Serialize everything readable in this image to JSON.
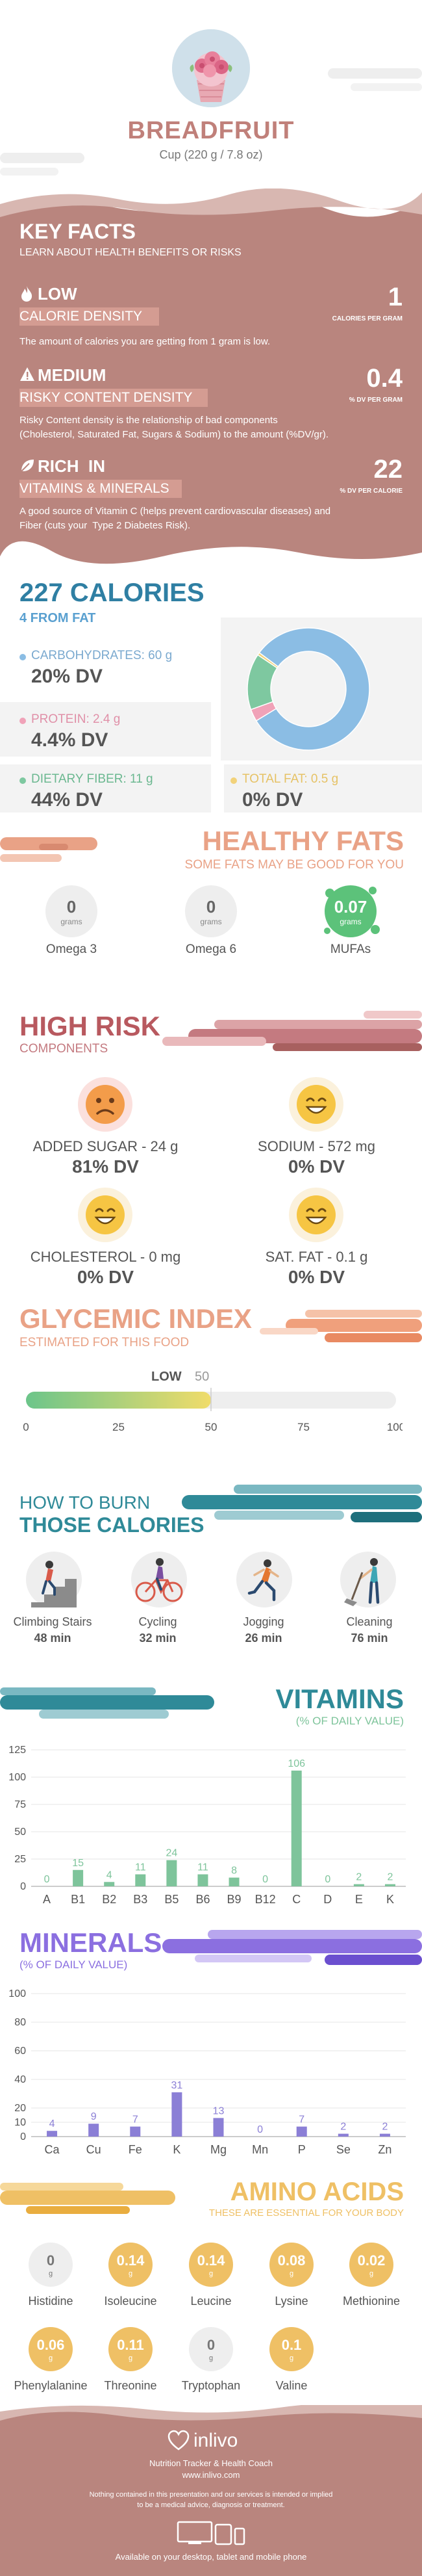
{
  "header": {
    "title": "BREADFRUIT",
    "serving": "Cup (220 g / 7.8 oz)"
  },
  "key_facts": {
    "title": "KEY FACTS",
    "subtitle": "LEARN ABOUT HEALTH BENEFITS OR RISKS",
    "items": [
      {
        "level": "LOW",
        "name": "CALORIE DENSITY",
        "value": "1",
        "unit": "CALORIES PER GRAM",
        "desc": "The amount of calories you are getting from 1 gram is low.",
        "icon": "flame-icon"
      },
      {
        "level": "MEDIUM",
        "name": "RISKY CONTENT DENSITY",
        "value": "0.4",
        "unit": "% DV PER GRAM",
        "desc1": "Risky Content density is the relationship of bad components",
        "desc2": "(Cholesterol, Saturated Fat, Sugars & Sodium) to the amount (%DV/gr).",
        "icon": "warning-icon"
      },
      {
        "level": "RICH  IN",
        "name": "VITAMINS & MINERALS",
        "value": "22",
        "unit": "% DV PER CALORIE",
        "desc1": "A good source of Vitamin C (helps prevent cardiovascular diseases) and",
        "desc2": "Fiber (cuts your  Type 2 Diabetes Risk).",
        "icon": "leaf-icon"
      }
    ]
  },
  "calories": {
    "title": "227 CALORIES",
    "from_fat": "4 FROM FAT",
    "carbs": {
      "label": "CARBOHYDRATES: 60 g",
      "dv": "20% DV",
      "color": "#8bbde4"
    },
    "protein": {
      "label": "PROTEIN: 2.4 g",
      "dv": "4.4% DV",
      "color": "#f0a2b8"
    },
    "fiber": {
      "label": "DIETARY FIBER: 11 g",
      "dv": "44% DV",
      "color": "#7ec8a0"
    },
    "fat": {
      "label": "TOTAL FAT: 0.5 g",
      "dv": "0% DV",
      "color": "#f2d27a"
    }
  },
  "chart_data": [
    {
      "type": "pie",
      "categories": [
        "Carbohydrates",
        "Protein",
        "Dietary Fiber",
        "Total Fat"
      ],
      "values": [
        60,
        2.4,
        11,
        0.5
      ]
    },
    {
      "type": "bar",
      "title": "VITAMINS",
      "subtitle": "(% OF DAILY VALUE)",
      "categories": [
        "A",
        "B1",
        "B2",
        "B3",
        "B5",
        "B6",
        "B9",
        "B12",
        "C",
        "D",
        "E",
        "K"
      ],
      "values": [
        0,
        15,
        4,
        11,
        24,
        11,
        8,
        0,
        106,
        0,
        2,
        2
      ],
      "ylim": [
        0,
        125
      ],
      "yticks": [
        0,
        25,
        50,
        75,
        100,
        125
      ]
    },
    {
      "type": "bar",
      "title": "MINERALS",
      "subtitle": "(% OF DAILY VALUE)",
      "categories": [
        "Ca",
        "Cu",
        "Fe",
        "K",
        "Mg",
        "Mn",
        "P",
        "Se",
        "Zn"
      ],
      "values": [
        4,
        9,
        7,
        31,
        13,
        0,
        7,
        2,
        2
      ],
      "ylim": [
        0,
        100
      ],
      "yticks": [
        0,
        10,
        20,
        40,
        60,
        80,
        100
      ]
    }
  ],
  "healthy_fats": {
    "title": "HEALTHY FATS",
    "subtitle": "SOME FATS MAY BE GOOD FOR YOU",
    "unit": "grams",
    "items": [
      {
        "name": "Omega 3",
        "value": "0"
      },
      {
        "name": "Omega 6",
        "value": "0"
      },
      {
        "name": "MUFAs",
        "value": "0.07"
      }
    ]
  },
  "high_risk": {
    "title": "HIGH RISK",
    "subtitle": "COMPONENTS",
    "items": [
      {
        "label": "ADDED SUGAR - 24 g",
        "dv": "81% DV",
        "mood": "sad"
      },
      {
        "label": "SODIUM - 572 mg",
        "dv": "0% DV",
        "mood": "happy"
      },
      {
        "label": "CHOLESTEROL - 0 mg",
        "dv": "0% DV",
        "mood": "happy"
      },
      {
        "label": "SAT. FAT - 0.1 g",
        "dv": "0% DV",
        "mood": "happy"
      }
    ]
  },
  "glycemic": {
    "title": "GLYCEMIC INDEX",
    "subtitle": "ESTIMATED FOR THIS FOOD",
    "level": "LOW",
    "value": 50,
    "value_text": "50",
    "ticks": [
      "0",
      "25",
      "50",
      "75",
      "100"
    ]
  },
  "burn": {
    "title1": "HOW TO BURN",
    "title2": "THOSE CALORIES",
    "items": [
      {
        "name": "Climbing Stairs",
        "min": "48 min"
      },
      {
        "name": "Cycling",
        "min": "32 min"
      },
      {
        "name": "Jogging",
        "min": "26 min"
      },
      {
        "name": "Cleaning",
        "min": "76 min"
      }
    ]
  },
  "vitamins": {
    "title": "VITAMINS",
    "subtitle": "(% OF DAILY VALUE)",
    "color": "#7ec49b"
  },
  "minerals": {
    "title": "MINERALS",
    "subtitle": "(% OF DAILY VALUE)",
    "color": "#8b7fd6"
  },
  "amino": {
    "title": "AMINO ACIDS",
    "subtitle": "THESE ARE ESSENTIAL FOR YOUR BODY",
    "unit": "g",
    "items": [
      {
        "name": "Histidine",
        "value": "0"
      },
      {
        "name": "Isoleucine",
        "value": "0.14"
      },
      {
        "name": "Leucine",
        "value": "0.14"
      },
      {
        "name": "Lysine",
        "value": "0.08"
      },
      {
        "name": "Methionine",
        "value": "0.02"
      },
      {
        "name": "Phenylalanine",
        "value": "0.06"
      },
      {
        "name": "Threonine",
        "value": "0.11"
      },
      {
        "name": "Tryptophan",
        "value": "0"
      },
      {
        "name": "Valine",
        "value": "0.1"
      }
    ]
  },
  "footer": {
    "brand": "inlivo",
    "tagline": "Nutrition Tracker & Health Coach",
    "url": "www.inlivo.com",
    "disclaimer1": "Nothing contained in this presentation and our services is intended or implied",
    "disclaimer2": "to be a medical advice, diagnosis or treatment.",
    "available": "Available on your desktop, tablet and mobile phone"
  },
  "colors": {
    "brown": "#b9857e",
    "brown_dark": "#a8716a",
    "salmon": "#e9a286",
    "teal": "#2f8a98",
    "purple": "#8b6fe0",
    "gold": "#efc065",
    "green": "#7ec49b"
  }
}
